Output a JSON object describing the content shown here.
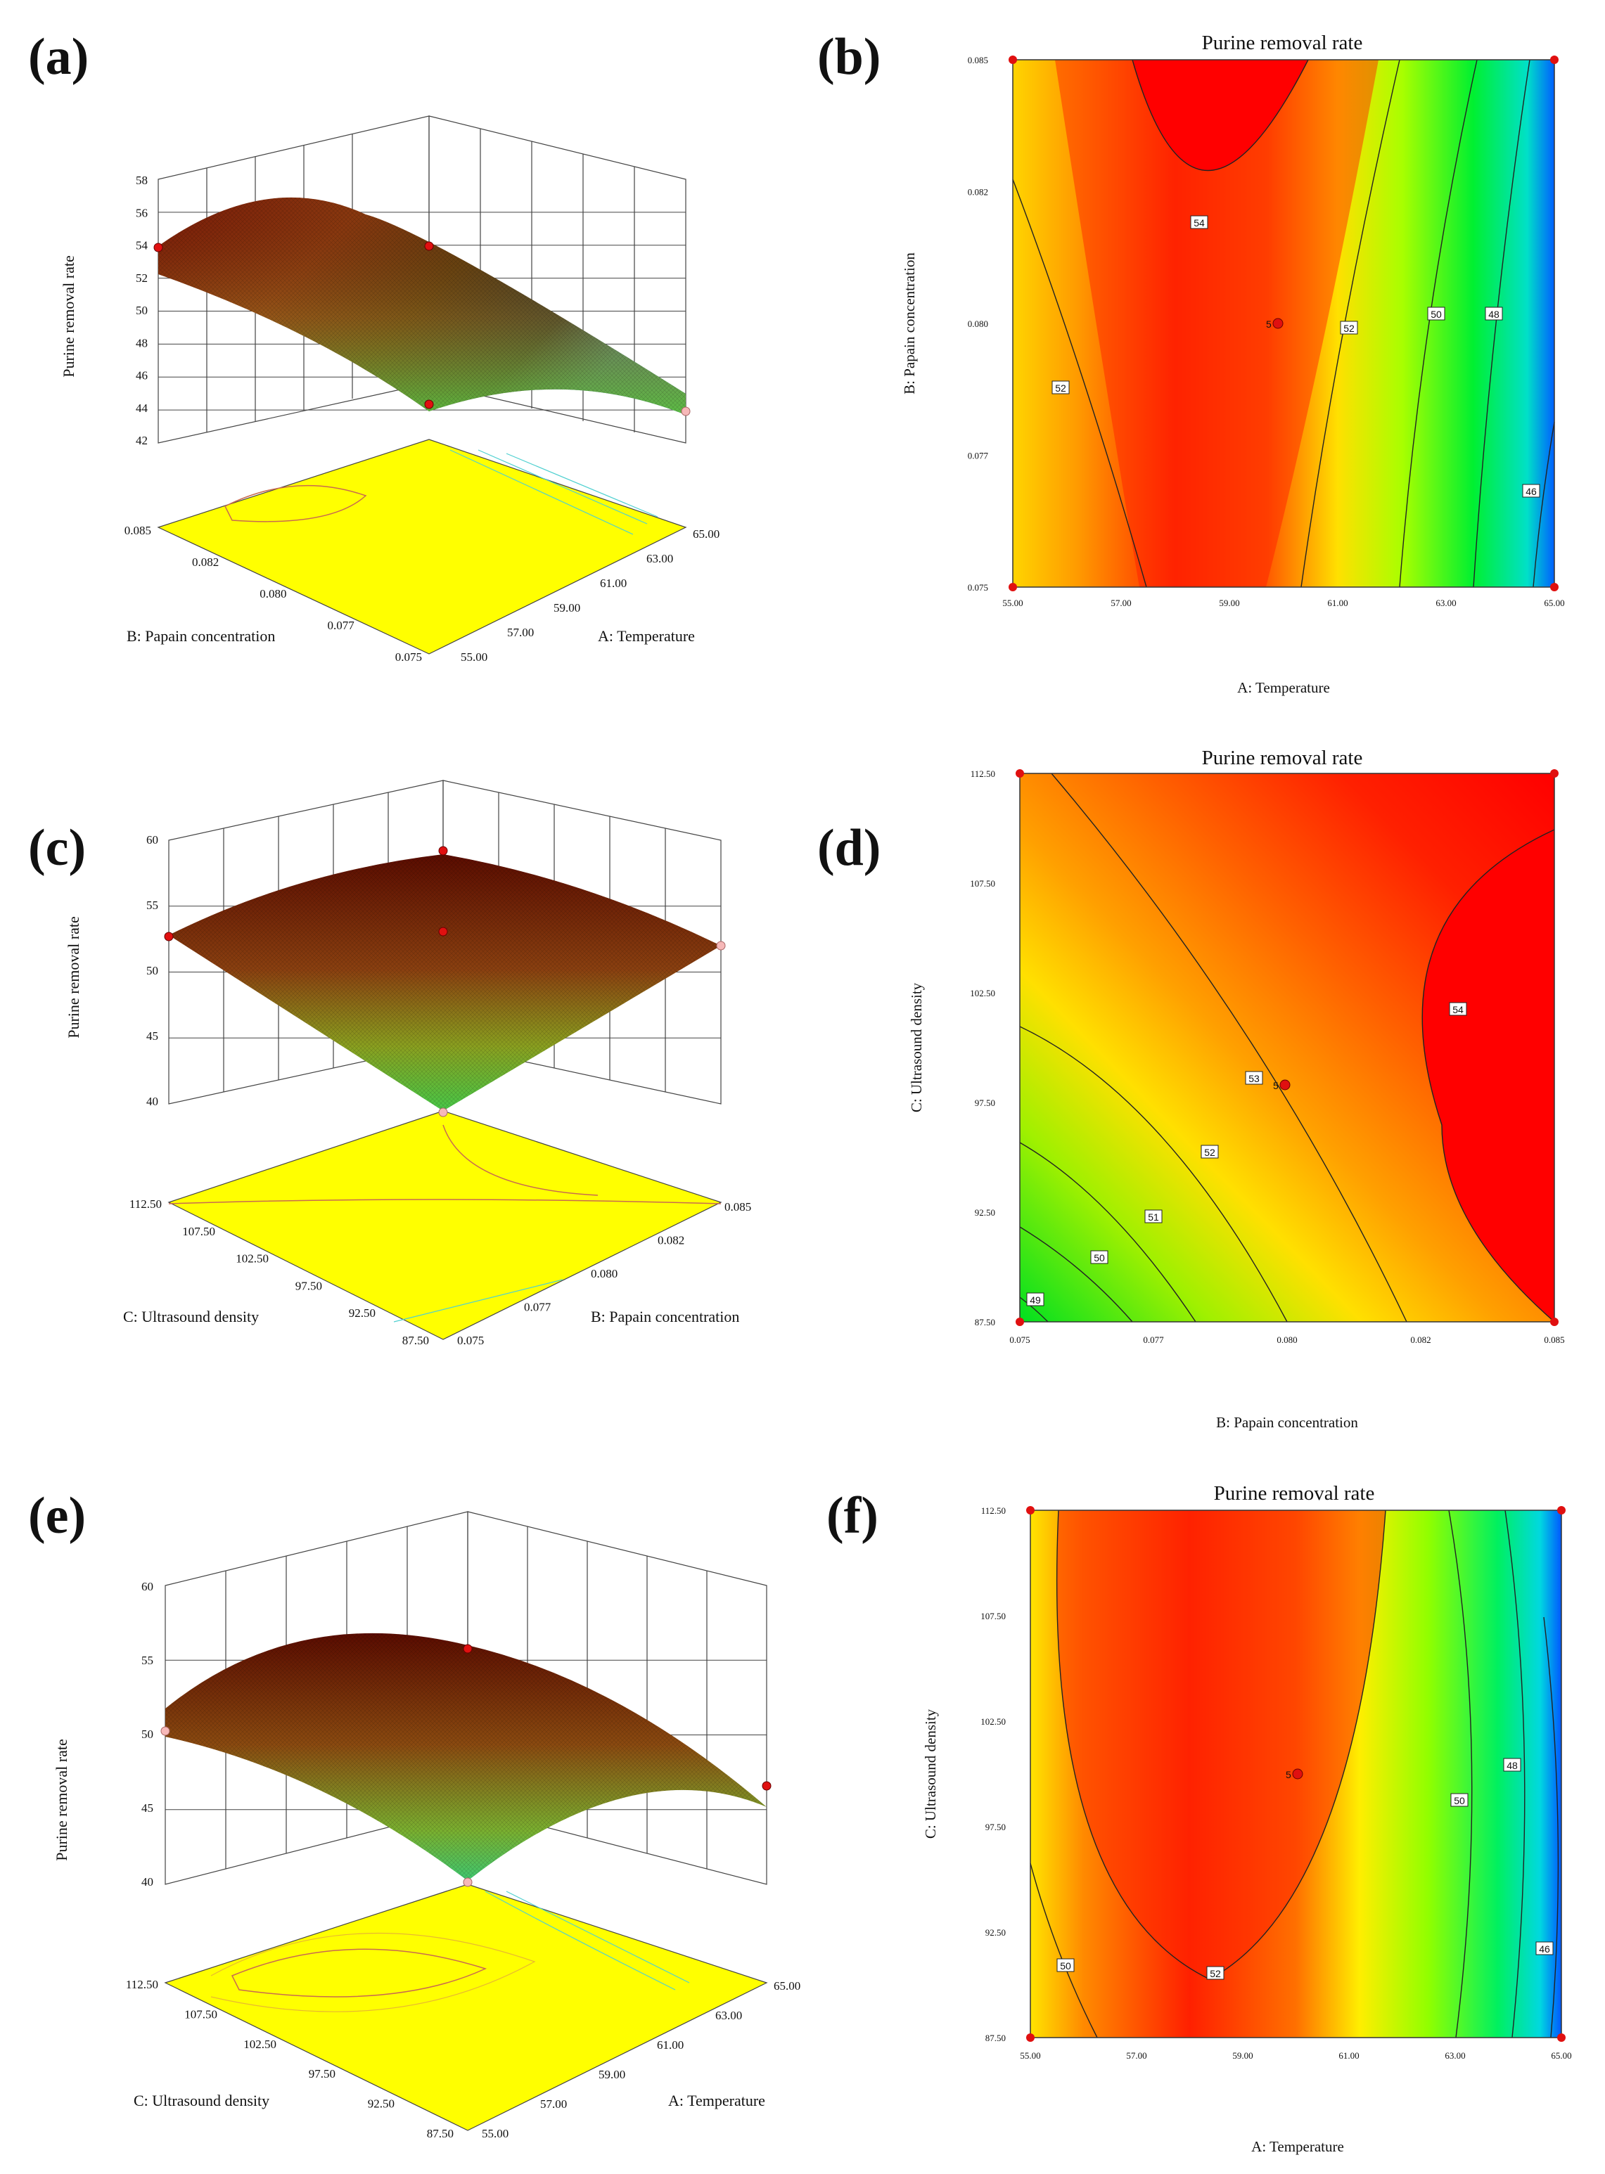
{
  "figure_labels": [
    "(a)",
    "(b)",
    "(c)",
    "(d)",
    "(e)",
    "(f)"
  ],
  "chart_data": [
    {
      "id": "a",
      "type": "surface",
      "zlabel": "Purine removal rate",
      "xlabel": "A: Temperature",
      "ylabel": "B: Papain concentration",
      "zlim": [
        42,
        58
      ],
      "zticks": [
        "42",
        "44",
        "46",
        "48",
        "50",
        "52",
        "54",
        "56",
        "58"
      ],
      "xticks": [
        "55.00",
        "57.00",
        "59.00",
        "61.00",
        "63.00",
        "65.00"
      ],
      "yticks": [
        "0.075",
        "0.077",
        "0.080",
        "0.082",
        "0.085"
      ],
      "colors": {
        "high": "#6b0000",
        "low": "#2fa0c8",
        "floor": "#ffff00"
      }
    },
    {
      "id": "b",
      "type": "contour",
      "title": "Purine removal rate",
      "xlabel": "A: Temperature",
      "ylabel": "B: Papain concentration",
      "xticks": [
        "55.00",
        "57.00",
        "59.00",
        "61.00",
        "63.00",
        "65.00"
      ],
      "yticks": [
        "0.075",
        "0.077",
        "0.080",
        "0.082",
        "0.085"
      ],
      "contour_labels": [
        "54",
        "52",
        "52",
        "50",
        "48",
        "46"
      ],
      "center_label": "5"
    },
    {
      "id": "c",
      "type": "surface",
      "zlabel": "Purine removal rate",
      "xlabel": "B: Papain concentration",
      "ylabel": "C: Ultrasound density",
      "zlim": [
        40,
        60
      ],
      "zticks": [
        "40",
        "45",
        "50",
        "55",
        "60"
      ],
      "xticks": [
        "0.075",
        "0.077",
        "0.080",
        "0.082",
        "0.085"
      ],
      "yticks": [
        "87.50",
        "92.50",
        "97.50",
        "102.50",
        "107.50",
        "112.50"
      ],
      "colors": {
        "high": "#6b0000",
        "low": "#3fbf3f",
        "floor": "#ffff00"
      }
    },
    {
      "id": "d",
      "type": "contour",
      "title": "Purine removal rate",
      "xlabel": "B: Papain concentration",
      "ylabel": "C: Ultrasound density",
      "xticks": [
        "0.075",
        "0.077",
        "0.080",
        "0.082",
        "0.085"
      ],
      "yticks": [
        "87.50",
        "92.50",
        "97.50",
        "102.50",
        "107.50",
        "112.50"
      ],
      "contour_labels": [
        "54",
        "53",
        "52",
        "51",
        "50",
        "49"
      ],
      "center_label": "5"
    },
    {
      "id": "e",
      "type": "surface",
      "zlabel": "Purine removal rate",
      "xlabel": "A: Temperature",
      "ylabel": "C: Ultrasound density",
      "zlim": [
        40,
        60
      ],
      "zticks": [
        "40",
        "45",
        "50",
        "55",
        "60"
      ],
      "xticks": [
        "55.00",
        "57.00",
        "59.00",
        "61.00",
        "63.00",
        "65.00"
      ],
      "yticks": [
        "87.50",
        "92.50",
        "97.50",
        "102.50",
        "107.50",
        "112.50"
      ],
      "colors": {
        "high": "#6b0000",
        "low": "#2fa0c8",
        "floor": "#ffff00"
      }
    },
    {
      "id": "f",
      "type": "contour",
      "title": "Purine removal rate",
      "xlabel": "A: Temperature",
      "ylabel": "C: Ultrasound density",
      "xticks": [
        "55.00",
        "57.00",
        "59.00",
        "61.00",
        "63.00",
        "65.00"
      ],
      "yticks": [
        "87.50",
        "92.50",
        "97.50",
        "102.50",
        "107.50",
        "112.50"
      ],
      "contour_labels": [
        "52",
        "50",
        "50",
        "48",
        "46"
      ],
      "center_label": "5"
    }
  ]
}
